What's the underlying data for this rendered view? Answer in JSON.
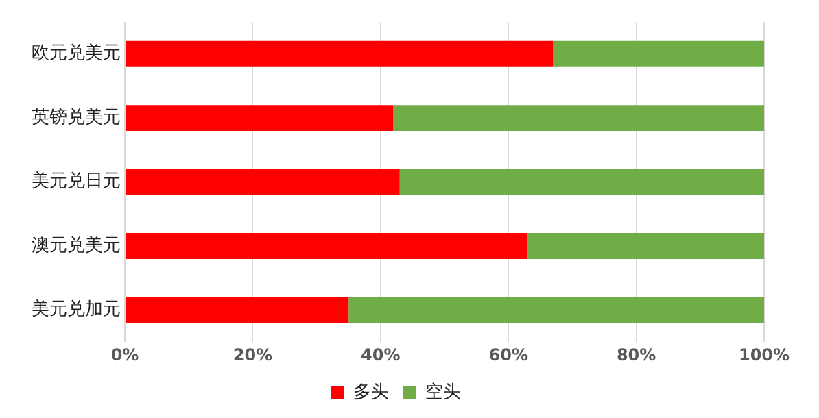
{
  "chart_data": {
    "type": "bar",
    "orientation": "horizontal",
    "stacked": true,
    "categories": [
      "欧元兑美元",
      "英镑兑美元",
      "美元兑日元",
      "澳元兑美元",
      "美元兑加元"
    ],
    "series": [
      {
        "name": "多头",
        "color": "#ff0000",
        "values": [
          67,
          42,
          43,
          63,
          35
        ]
      },
      {
        "name": "空头",
        "color": "#70ad47",
        "values": [
          33,
          58,
          57,
          37,
          65
        ]
      }
    ],
    "xlim": [
      0,
      100
    ],
    "xticks": [
      {
        "value": 0,
        "label": "0%"
      },
      {
        "value": 20,
        "label": "20%"
      },
      {
        "value": 40,
        "label": "40%"
      },
      {
        "value": 60,
        "label": "60%"
      },
      {
        "value": 80,
        "label": "80%"
      },
      {
        "value": 100,
        "label": "100%"
      }
    ],
    "grid": "x",
    "legend": "bottom"
  }
}
